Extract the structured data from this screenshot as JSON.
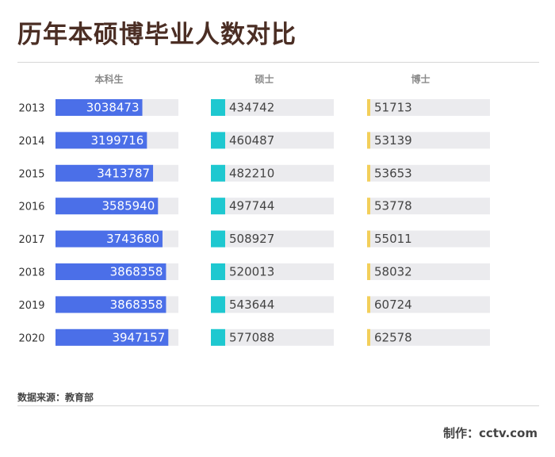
{
  "title": "历年本硕博毕业人数对比",
  "source": "数据来源：教育部",
  "credit": "制作：cctv.com",
  "colors": {
    "bachelor": "#4b6fe8",
    "master": "#1ec8d0",
    "doctor": "#f3cf5a",
    "track": "#ebebee"
  },
  "chart_data": {
    "type": "bar",
    "categories": [
      "2013",
      "2014",
      "2015",
      "2016",
      "2017",
      "2018",
      "2019",
      "2020"
    ],
    "series": [
      {
        "name": "本科生",
        "values": [
          3038473,
          3199716,
          3413787,
          3585940,
          3743680,
          3868358,
          3868358,
          3947157
        ]
      },
      {
        "name": "硕士",
        "values": [
          434742,
          460487,
          482210,
          497744,
          508927,
          520013,
          543644,
          577088
        ]
      },
      {
        "name": "博士",
        "values": [
          51713,
          53139,
          53653,
          53778,
          55011,
          58032,
          60724,
          62578
        ]
      }
    ]
  }
}
